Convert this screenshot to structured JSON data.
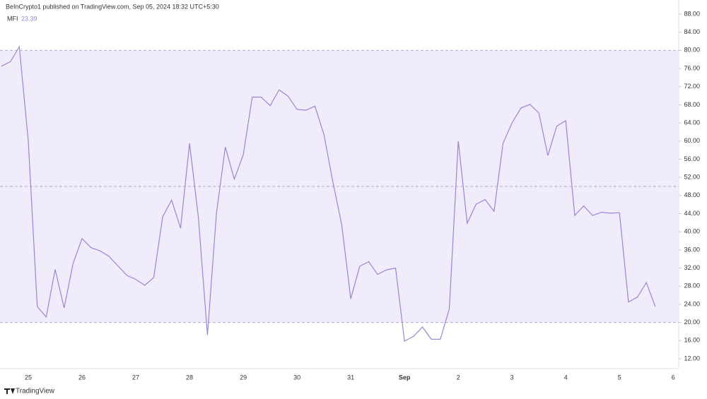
{
  "header": {
    "publisher": "BeInCrypto1 published on TradingView.com, Sep 05, 2024 18:32 UTC+5:30",
    "indicator": "MFI",
    "indicator_value": "23.39",
    "footer_logo": "TradingView"
  },
  "chart_data": {
    "type": "line",
    "categories": [
      null,
      null,
      null,
      "25",
      null,
      null,
      null,
      null,
      null,
      "26",
      null,
      null,
      null,
      null,
      null,
      "27",
      null,
      null,
      null,
      null,
      null,
      "28",
      null,
      null,
      null,
      null,
      null,
      "29",
      null,
      null,
      null,
      null,
      null,
      "30",
      null,
      null,
      null,
      null,
      null,
      "31",
      null,
      null,
      null,
      null,
      null,
      "Sep",
      null,
      null,
      null,
      null,
      null,
      "2",
      null,
      null,
      null,
      null,
      null,
      "3",
      null,
      null,
      null,
      null,
      null,
      "4",
      null,
      null,
      null,
      null,
      null,
      "5",
      null,
      null,
      null,
      null,
      null,
      "6"
    ],
    "series": [
      {
        "name": "MFI",
        "color": "#9a86d2",
        "values": [
          76.5,
          77.5,
          80.8,
          60,
          23.5,
          21.2,
          31.7,
          23.2,
          33,
          38.5,
          36.5,
          35.8,
          34.6,
          32.5,
          30.4,
          29.5,
          28.2,
          29.9,
          43.3,
          47,
          40.8,
          59.5,
          43,
          17.2,
          44,
          58.7,
          51.6,
          57,
          69.7,
          69.7,
          67.8,
          71.3,
          69.9,
          67,
          66.8,
          67.7,
          61.5,
          51,
          41.5,
          25.2,
          32.4,
          33.4,
          30.6,
          31.6,
          32,
          15.9,
          16.9,
          19,
          16.3,
          16.3,
          23,
          60,
          41.9,
          46.1,
          47.1,
          44.5,
          59.5,
          64,
          67.3,
          68.1,
          66.2,
          56.8,
          63.3,
          64.5,
          43.6,
          45.7,
          43.6,
          44.3,
          44.1,
          44.2,
          24.5,
          25.6,
          28.8,
          23.5,
          null,
          null
        ]
      }
    ],
    "bands": {
      "upper": 80,
      "middle": 50,
      "lower": 20,
      "fill": "#f1ecfb"
    },
    "ylim": [
      12,
      88
    ],
    "yticks": [
      {
        "value": 12,
        "label": "12.00"
      },
      {
        "value": 16,
        "label": "16.00"
      },
      {
        "value": 20,
        "label": "20.00"
      },
      {
        "value": 24,
        "label": "24.00"
      },
      {
        "value": 28,
        "label": "28.00"
      },
      {
        "value": 32,
        "label": "32.00"
      },
      {
        "value": 36,
        "label": "36.00"
      },
      {
        "value": 40,
        "label": "40.00"
      },
      {
        "value": 44,
        "label": "44.00"
      },
      {
        "value": 48,
        "label": "48.00"
      },
      {
        "value": 52,
        "label": "52.00"
      },
      {
        "value": 56,
        "label": "56.00"
      },
      {
        "value": 60,
        "label": "60.00"
      },
      {
        "value": 64,
        "label": "64.00"
      },
      {
        "value": 68,
        "label": "68.00"
      },
      {
        "value": 72,
        "label": "72.00"
      },
      {
        "value": 76,
        "label": "76.00"
      },
      {
        "value": 80,
        "label": "80.00"
      },
      {
        "value": 84,
        "label": "84.00"
      },
      {
        "value": 88,
        "label": "88.00"
      }
    ]
  }
}
